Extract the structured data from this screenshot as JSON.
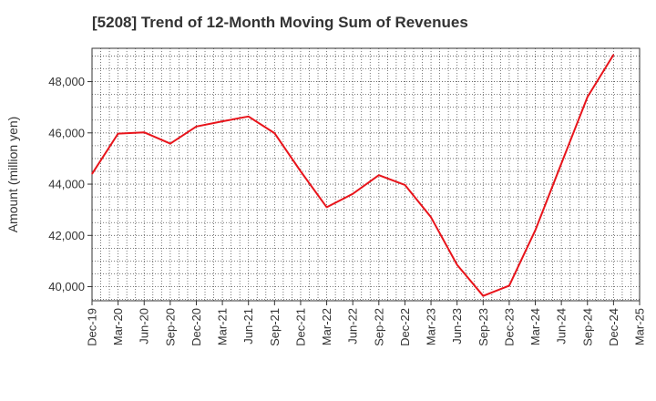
{
  "chart_data": {
    "type": "line",
    "title": "[5208]  Trend of 12-Month Moving Sum of Revenues",
    "xlabel": "",
    "ylabel": "Amount (million yen)",
    "x_ticks": [
      "Dec-19",
      "Mar-20",
      "Jun-20",
      "Sep-20",
      "Dec-20",
      "Mar-21",
      "Jun-21",
      "Sep-21",
      "Dec-21",
      "Mar-22",
      "Jun-22",
      "Sep-22",
      "Dec-22",
      "Mar-23",
      "Jun-23",
      "Sep-23",
      "Dec-23",
      "Mar-24",
      "Jun-24",
      "Sep-24",
      "Dec-24",
      "Mar-25"
    ],
    "y_ticks": [
      40000,
      42000,
      44000,
      46000,
      48000
    ],
    "y_tick_labels": [
      "40,000",
      "42,000",
      "44,000",
      "46,000",
      "48,000"
    ],
    "ylim": [
      39450,
      49300
    ],
    "grid": true,
    "series": [
      {
        "color": "#e8141b",
        "x": [
          "Dec-19",
          "Mar-20",
          "Jun-20",
          "Sep-20",
          "Dec-20",
          "Mar-21",
          "Jun-21",
          "Sep-21",
          "Dec-21",
          "Mar-22",
          "Jun-22",
          "Sep-22",
          "Dec-22",
          "Mar-23",
          "Jun-23",
          "Sep-23",
          "Dec-23",
          "Mar-24",
          "Jun-24",
          "Sep-24",
          "Dec-24"
        ],
        "values": [
          44400,
          45970,
          46020,
          45580,
          46250,
          46450,
          46640,
          45990,
          44500,
          43100,
          43620,
          44350,
          43970,
          42710,
          40850,
          39640,
          40040,
          42200,
          44800,
          47400,
          49050
        ]
      }
    ]
  }
}
